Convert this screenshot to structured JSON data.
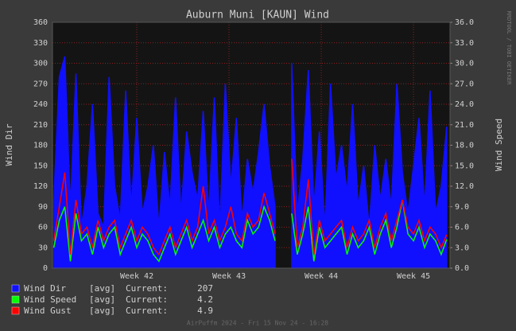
{
  "chart_data": {
    "type": "line",
    "title": "Auburn Muni [KAUN] Wind",
    "ylabel": "Wind Dir",
    "y2label": "Wind Speed",
    "watermark": "RRDTOOL / TOBI OETIKER",
    "footer": "AirPuffm 2024 - Fri 15 Nov 24 - 16:28",
    "grid": true,
    "xlim": [
      41.086,
      45.396
    ],
    "xticks": [
      {
        "value": 42,
        "label": "Week 42"
      },
      {
        "value": 43,
        "label": "Week 43"
      },
      {
        "value": 44,
        "label": "Week 44"
      },
      {
        "value": 45,
        "label": "Week 45"
      }
    ],
    "ylim": [
      0,
      360
    ],
    "yticks": [
      0,
      30,
      60,
      90,
      120,
      150,
      180,
      210,
      240,
      270,
      300,
      330,
      360
    ],
    "y2lim": [
      0,
      36
    ],
    "y2ticks": [
      {
        "value": 0,
        "label": "0.0"
      },
      {
        "value": 3,
        "label": "3.0"
      },
      {
        "value": 6,
        "label": "6.0"
      },
      {
        "value": 9,
        "label": "9.0"
      },
      {
        "value": 12,
        "label": "12.0"
      },
      {
        "value": 15,
        "label": "15.0"
      },
      {
        "value": 18,
        "label": "18.0"
      },
      {
        "value": 21,
        "label": "21.0"
      },
      {
        "value": 24,
        "label": "24.0"
      },
      {
        "value": 27,
        "label": "27.0"
      },
      {
        "value": 30,
        "label": "30.0"
      },
      {
        "value": 33,
        "label": "33.0"
      },
      {
        "value": 36,
        "label": "36.0"
      }
    ],
    "x": [
      41.1,
      41.16,
      41.22,
      41.28,
      41.34,
      41.4,
      41.46,
      41.52,
      41.58,
      41.64,
      41.7,
      41.76,
      41.82,
      41.88,
      41.94,
      42,
      42.06,
      42.12,
      42.18,
      42.24,
      42.3,
      42.36,
      42.42,
      42.48,
      42.54,
      42.6,
      42.66,
      42.72,
      42.78,
      42.84,
      42.9,
      42.96,
      43.02,
      43.08,
      43.14,
      43.2,
      43.26,
      43.32,
      43.38,
      43.44,
      43.5,
      43.56,
      43.62,
      43.68,
      43.74,
      43.8,
      43.86,
      43.92,
      43.98,
      44.04,
      44.1,
      44.16,
      44.22,
      44.28,
      44.34,
      44.4,
      44.46,
      44.52,
      44.58,
      44.64,
      44.7,
      44.76,
      44.82,
      44.88,
      44.94,
      45,
      45.06,
      45.12,
      45.18,
      45.24,
      45.3,
      45.36
    ],
    "series": [
      {
        "name": "Wind Dir",
        "style": "area",
        "color": "#1010ff",
        "stat": "[avg]",
        "current_label": "Current:",
        "current": 207,
        "values": [
          100,
          280,
          310,
          90,
          285,
          60,
          120,
          240,
          80,
          60,
          280,
          120,
          70,
          260,
          90,
          220,
          80,
          120,
          180,
          60,
          170,
          90,
          250,
          80,
          200,
          140,
          100,
          230,
          80,
          250,
          60,
          270,
          120,
          220,
          70,
          160,
          110,
          170,
          240,
          150,
          90,
          null,
          null,
          300,
          80,
          160,
          290,
          90,
          200,
          60,
          270,
          130,
          180,
          110,
          240,
          90,
          150,
          60,
          180,
          100,
          160,
          90,
          270,
          140,
          80,
          150,
          220,
          90,
          260,
          80,
          120,
          207
        ]
      },
      {
        "name": "Wind Speed",
        "style": "line",
        "axis": "y2",
        "color": "#00ff00",
        "stat": "[avg]",
        "current_label": "Current:",
        "current": 4.2,
        "values": [
          3,
          7,
          9,
          1,
          8,
          4,
          5,
          2,
          6,
          3,
          5,
          6,
          2,
          4,
          6,
          3,
          5,
          4,
          2,
          1,
          3,
          5,
          2,
          4,
          6,
          3,
          5,
          7,
          4,
          6,
          3,
          5,
          6,
          4,
          3,
          7,
          5,
          6,
          9,
          7,
          4,
          null,
          null,
          8,
          2,
          5,
          9,
          1,
          6,
          3,
          4,
          5,
          6,
          2,
          5,
          3,
          4,
          6,
          2,
          5,
          7,
          3,
          6,
          10,
          5,
          4,
          6,
          3,
          5,
          4,
          2,
          4.2
        ]
      },
      {
        "name": "Wind Gust",
        "style": "line",
        "axis": "y2",
        "color": "#ff0000",
        "stat": "[avg]",
        "current_label": "Current:",
        "current": 4.9,
        "values": [
          4,
          9,
          14,
          2,
          10,
          5,
          6,
          3,
          7,
          4,
          6,
          7,
          3,
          5,
          7,
          4,
          6,
          5,
          3,
          2,
          4,
          6,
          3,
          5,
          7,
          4,
          6,
          12,
          5,
          7,
          4,
          6,
          9,
          5,
          4,
          8,
          6,
          7,
          11,
          8,
          5,
          null,
          null,
          16,
          3,
          6,
          13,
          2,
          7,
          4,
          5,
          6,
          7,
          3,
          6,
          4,
          5,
          7,
          3,
          6,
          8,
          4,
          7,
          10,
          6,
          5,
          7,
          4,
          6,
          5,
          3,
          4.9
        ]
      }
    ]
  }
}
